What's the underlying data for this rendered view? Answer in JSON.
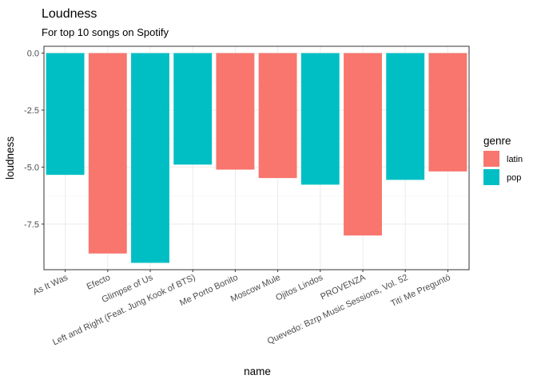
{
  "chart_data": {
    "type": "bar",
    "title": "Loudness",
    "subtitle": "For top 10 songs on Spotify",
    "xlabel": "name",
    "ylabel": "loudness",
    "categories": [
      "As It Was",
      "Efecto",
      "Glimpse of Us",
      "Left and Right (Feat. Jung Kook of BTS)",
      "Me Porto Bonito",
      "Moscow Mule",
      "Ojitos Lindos",
      "PROVENZA",
      "Quevedo: Bzrp Music Sessions, Vol. 52",
      "Tití Me Preguntó"
    ],
    "values": [
      -5.34,
      -8.79,
      -9.2,
      -4.89,
      -5.11,
      -5.48,
      -5.77,
      -8.0,
      -5.56,
      -5.19
    ],
    "genre": [
      "pop",
      "latin",
      "pop",
      "pop",
      "latin",
      "latin",
      "pop",
      "latin",
      "pop",
      "latin"
    ],
    "ylim": [
      -9.5,
      0.3
    ],
    "yticks": [
      0.0,
      -2.5,
      -5.0,
      -7.5
    ],
    "ytick_labels": [
      "0.0",
      "-2.5",
      "-5.0",
      "-7.5"
    ],
    "grid": true,
    "legend": {
      "title": "genre",
      "position": "right",
      "entries": [
        {
          "label": "latin",
          "color": "#F8766D"
        },
        {
          "label": "pop",
          "color": "#00BFC4"
        }
      ]
    }
  }
}
